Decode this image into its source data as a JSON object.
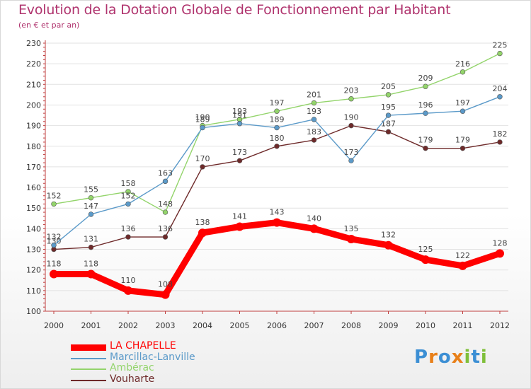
{
  "title": "Evolution de la Dotation Globale de Fonctionnement par Habitant",
  "subtitle": "(en € et par an)",
  "brand": {
    "name": "Proxiti",
    "letters": [
      {
        "ch": "P",
        "color": "#3c8fd4"
      },
      {
        "ch": "r",
        "color": "#e8801a"
      },
      {
        "ch": "o",
        "color": "#3c8fd4"
      },
      {
        "ch": "x",
        "color": "#e8801a"
      },
      {
        "ch": "i",
        "color": "#7fbf3a"
      },
      {
        "ch": "t",
        "color": "#3c8fd4"
      },
      {
        "ch": "i",
        "color": "#7fbf3a"
      }
    ]
  },
  "chart_data": {
    "type": "line",
    "title": "Evolution de la Dotation Globale de Fonctionnement par Habitant",
    "subtitle": "(en € et par an)",
    "xlabel": "",
    "ylabel": "",
    "x": [
      "2000",
      "2001",
      "2002",
      "2003",
      "2004",
      "2005",
      "2006",
      "2007",
      "2008",
      "2009",
      "2010",
      "2011",
      "2012"
    ],
    "ylim": [
      100,
      230
    ],
    "yticks": [
      100,
      110,
      120,
      130,
      140,
      150,
      160,
      170,
      180,
      190,
      200,
      210,
      220,
      230
    ],
    "grid": true,
    "legend": "bottom-left",
    "series": [
      {
        "name": "LA CHAPELLE",
        "color": "#ff0000",
        "values": [
          118,
          118,
          110,
          108,
          138,
          141,
          143,
          140,
          135,
          132,
          125,
          122,
          128
        ]
      },
      {
        "name": "Marcillac-Lanville",
        "color": "#5b9ac9",
        "values": [
          132,
          147,
          152,
          163,
          189,
          191,
          189,
          193,
          173,
          195,
          196,
          197,
          204
        ]
      },
      {
        "name": "Ambérac",
        "color": "#93d46b",
        "values": [
          152,
          155,
          158,
          148,
          190,
          193,
          197,
          201,
          203,
          205,
          209,
          216,
          225
        ]
      },
      {
        "name": "Vouharte",
        "color": "#6e2a2a",
        "values": [
          130,
          131,
          136,
          136,
          170,
          173,
          180,
          183,
          190,
          187,
          179,
          179,
          182
        ]
      }
    ]
  }
}
